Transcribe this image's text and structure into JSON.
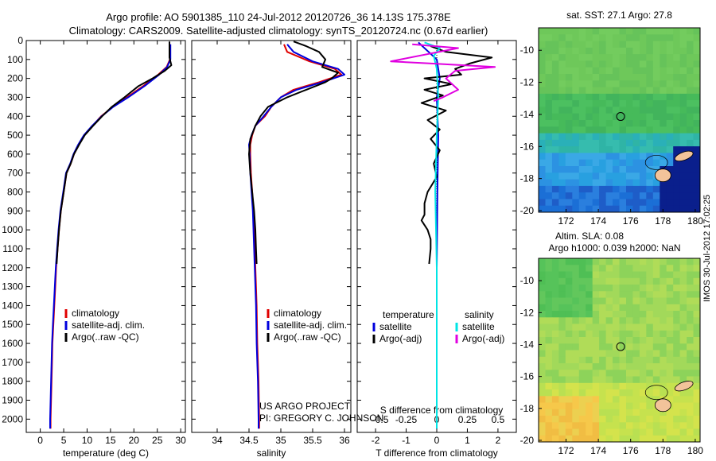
{
  "header": {
    "title_line1": "Argo profile: AO 5901385_110 24-Jul-2012 20120726_36 14.13S 175.378E",
    "title_line2": "Climatology: CARS2009. Satellite-adjusted climatology: synTS_20120724.nc (0.67d earlier)"
  },
  "footer_stamp": "IMOS 30-Jul-2012 17:02:25",
  "chart_data": [
    {
      "type": "line",
      "name": "temperature-panel",
      "xlabel": "temperature (deg C)",
      "xlim": [
        -3,
        31
      ],
      "ylim": [
        2070,
        0
      ],
      "xticks": [
        0,
        5,
        10,
        15,
        20,
        25,
        30
      ],
      "yticks": [
        0,
        100,
        200,
        300,
        400,
        500,
        600,
        700,
        800,
        900,
        1000,
        1100,
        1200,
        1300,
        1400,
        1500,
        1600,
        1700,
        1800,
        1900,
        2000
      ],
      "legend": [
        "climatology",
        "satellite-adj. clim.",
        "Argo(..raw -QC)"
      ],
      "series": [
        {
          "name": "climatology",
          "color": "#e00000",
          "points": [
            [
              27.7,
              20
            ],
            [
              27.7,
              100
            ],
            [
              27.0,
              140
            ],
            [
              25.2,
              180
            ],
            [
              22.0,
              240
            ],
            [
              18.5,
              300
            ],
            [
              15.5,
              350
            ],
            [
              13.0,
              400
            ],
            [
              11.2,
              450
            ],
            [
              9.4,
              500
            ],
            [
              8.2,
              550
            ],
            [
              7.2,
              600
            ],
            [
              6.5,
              650
            ],
            [
              5.6,
              700
            ],
            [
              5.0,
              800
            ],
            [
              4.4,
              900
            ],
            [
              4.0,
              1000
            ],
            [
              3.7,
              1100
            ],
            [
              3.4,
              1200
            ],
            [
              3.2,
              1300
            ],
            [
              3.0,
              1400
            ],
            [
              2.8,
              1500
            ],
            [
              2.6,
              1600
            ],
            [
              2.5,
              1700
            ],
            [
              2.4,
              1800
            ],
            [
              2.3,
              1900
            ],
            [
              2.2,
              2000
            ],
            [
              2.2,
              2050
            ]
          ]
        },
        {
          "name": "satellite-adj. clim.",
          "color": "#0000dd",
          "points": [
            [
              27.8,
              20
            ],
            [
              27.8,
              100
            ],
            [
              27.1,
              140
            ],
            [
              25.4,
              180
            ],
            [
              22.3,
              240
            ],
            [
              18.8,
              300
            ],
            [
              15.6,
              350
            ],
            [
              13.1,
              400
            ],
            [
              11.1,
              450
            ],
            [
              9.3,
              500
            ],
            [
              8.1,
              550
            ],
            [
              7.1,
              600
            ],
            [
              6.4,
              650
            ],
            [
              5.5,
              700
            ],
            [
              4.9,
              800
            ],
            [
              4.3,
              900
            ],
            [
              3.9,
              1000
            ],
            [
              3.6,
              1100
            ],
            [
              3.3,
              1200
            ],
            [
              3.1,
              1300
            ],
            [
              2.9,
              1400
            ],
            [
              2.7,
              1500
            ],
            [
              2.5,
              1600
            ],
            [
              2.4,
              1700
            ],
            [
              2.3,
              1800
            ],
            [
              2.2,
              1900
            ],
            [
              2.1,
              2000
            ],
            [
              2.1,
              2050
            ]
          ]
        },
        {
          "name": "Argo(..raw -QC)",
          "color": "#000000",
          "points": [
            [
              27.6,
              5
            ],
            [
              27.6,
              90
            ],
            [
              28.0,
              130
            ],
            [
              26.6,
              160
            ],
            [
              24.0,
              200
            ],
            [
              21.0,
              240
            ],
            [
              18.0,
              300
            ],
            [
              15.3,
              350
            ],
            [
              13.2,
              400
            ],
            [
              11.3,
              450
            ],
            [
              9.5,
              500
            ],
            [
              8.3,
              550
            ],
            [
              7.2,
              600
            ],
            [
              6.5,
              650
            ],
            [
              5.6,
              700
            ],
            [
              5.0,
              800
            ],
            [
              4.4,
              900
            ],
            [
              4.0,
              1000
            ],
            [
              3.7,
              1100
            ],
            [
              3.5,
              1180
            ]
          ]
        }
      ]
    },
    {
      "type": "line",
      "name": "salinity-panel",
      "xlabel": "salinity",
      "xlim": [
        33.6,
        36.1
      ],
      "ylim": [
        2070,
        0
      ],
      "xticks": [
        34,
        34.5,
        35,
        35.5,
        36
      ],
      "legend": [
        "climatology",
        "satellite-adj. clim.",
        "Argo(..raw -QC)"
      ],
      "annotation": [
        "US ARGO PROJECT",
        "PI: GREGORY C. JOHNSON"
      ],
      "series": [
        {
          "name": "climatology",
          "color": "#e00000",
          "points": [
            [
              35.05,
              20
            ],
            [
              35.1,
              60
            ],
            [
              35.45,
              110
            ],
            [
              35.85,
              150
            ],
            [
              35.95,
              180
            ],
            [
              35.6,
              220
            ],
            [
              35.2,
              260
            ],
            [
              35.0,
              300
            ],
            [
              34.85,
              350
            ],
            [
              34.75,
              400
            ],
            [
              34.6,
              450
            ],
            [
              34.55,
              500
            ],
            [
              34.52,
              550
            ],
            [
              34.52,
              600
            ],
            [
              34.53,
              700
            ],
            [
              34.55,
              800
            ],
            [
              34.57,
              900
            ],
            [
              34.58,
              1000
            ],
            [
              34.6,
              1200
            ],
            [
              34.62,
              1400
            ],
            [
              34.63,
              1600
            ],
            [
              34.65,
              1800
            ],
            [
              34.66,
              2000
            ],
            [
              34.66,
              2050
            ]
          ]
        },
        {
          "name": "satellite-adj. clim.",
          "color": "#0000dd",
          "points": [
            [
              35.1,
              20
            ],
            [
              35.2,
              60
            ],
            [
              35.5,
              110
            ],
            [
              35.9,
              150
            ],
            [
              36.0,
              180
            ],
            [
              35.65,
              220
            ],
            [
              35.25,
              260
            ],
            [
              35.0,
              300
            ],
            [
              34.85,
              350
            ],
            [
              34.73,
              400
            ],
            [
              34.6,
              450
            ],
            [
              34.54,
              500
            ],
            [
              34.5,
              550
            ],
            [
              34.51,
              600
            ],
            [
              34.52,
              700
            ],
            [
              34.54,
              800
            ],
            [
              34.56,
              900
            ],
            [
              34.57,
              1000
            ],
            [
              34.59,
              1200
            ],
            [
              34.61,
              1400
            ],
            [
              34.62,
              1600
            ],
            [
              34.64,
              1800
            ],
            [
              34.65,
              2000
            ],
            [
              34.65,
              2050
            ]
          ]
        },
        {
          "name": "Argo(..raw -QC)",
          "color": "#000000",
          "points": [
            [
              35.2,
              5
            ],
            [
              35.4,
              30
            ],
            [
              35.6,
              60
            ],
            [
              35.7,
              100
            ],
            [
              35.65,
              140
            ],
            [
              35.9,
              170
            ],
            [
              35.8,
              200
            ],
            [
              35.7,
              220
            ],
            [
              35.4,
              260
            ],
            [
              35.1,
              300
            ],
            [
              34.8,
              350
            ],
            [
              34.68,
              400
            ],
            [
              34.6,
              450
            ],
            [
              34.52,
              520
            ],
            [
              34.5,
              600
            ],
            [
              34.52,
              700
            ],
            [
              34.55,
              800
            ],
            [
              34.58,
              900
            ],
            [
              34.6,
              1000
            ],
            [
              34.61,
              1100
            ],
            [
              34.62,
              1180
            ]
          ]
        }
      ]
    },
    {
      "type": "line",
      "name": "difference-panel",
      "xlabel": "T difference from climatology",
      "xlabel_top": "S difference from climatology",
      "xlim": [
        -2.6,
        2.6
      ],
      "ylim": [
        2070,
        0
      ],
      "xticks": [
        -2,
        -1,
        0,
        1,
        2
      ],
      "xticklabels_top": [
        "-0.5",
        "-0.25",
        "0",
        "0.25",
        "0.5"
      ],
      "legend_groups": [
        {
          "heading": "temperature",
          "items": [
            "satellite",
            "Argo(-adj)"
          ]
        },
        {
          "heading": "salinity",
          "items": [
            "satellite",
            "Argo(-adj)"
          ]
        }
      ],
      "series": [
        {
          "name": "temperature satellite",
          "color": "#0000dd",
          "points": [
            [
              -0.6,
              10
            ],
            [
              0.0,
              100
            ],
            [
              0.1,
              200
            ],
            [
              0.0,
              300
            ],
            [
              0.05,
              500
            ],
            [
              0.02,
              800
            ],
            [
              0.0,
              1200
            ],
            [
              0.0,
              2050
            ]
          ]
        },
        {
          "name": "temperature Argo(-adj)",
          "color": "#000000",
          "points": [
            [
              -0.2,
              30
            ],
            [
              0.3,
              60
            ],
            [
              1.8,
              90
            ],
            [
              1.1,
              120
            ],
            [
              0.6,
              150
            ],
            [
              0.8,
              180
            ],
            [
              -0.4,
              200
            ],
            [
              0.5,
              230
            ],
            [
              -0.4,
              260
            ],
            [
              0.2,
              290
            ],
            [
              -0.5,
              330
            ],
            [
              0.3,
              370
            ],
            [
              -0.3,
              420
            ],
            [
              0.1,
              470
            ],
            [
              -0.2,
              520
            ],
            [
              0.1,
              580
            ],
            [
              -0.1,
              650
            ],
            [
              0.0,
              720
            ],
            [
              -0.3,
              800
            ],
            [
              -0.4,
              860
            ],
            [
              -0.4,
              920
            ],
            [
              -0.5,
              950
            ],
            [
              -0.3,
              1000
            ],
            [
              -0.2,
              1050
            ],
            [
              -0.2,
              1100
            ],
            [
              -0.25,
              1180
            ]
          ]
        },
        {
          "name": "salinity satellite",
          "color": "#00e5e5",
          "points": [
            [
              -0.4,
              10
            ],
            [
              0.1,
              40
            ],
            [
              -0.1,
              80
            ],
            [
              0.0,
              150
            ],
            [
              0.05,
              300
            ],
            [
              0.0,
              500
            ],
            [
              -0.05,
              800
            ],
            [
              0.0,
              1200
            ],
            [
              0.0,
              2050
            ]
          ]
        },
        {
          "name": "salinity Argo(-adj)",
          "color": "#e000e0",
          "points": [
            [
              -0.8,
              20
            ],
            [
              0.7,
              40
            ],
            [
              -1.5,
              110
            ],
            [
              -0.3,
              120
            ],
            [
              1.9,
              140
            ],
            [
              0.6,
              160
            ],
            [
              0.3,
              200
            ],
            [
              0.7,
              260
            ],
            [
              0.2,
              300
            ],
            [
              -0.1,
              320
            ]
          ]
        }
      ]
    },
    {
      "type": "heatmap",
      "name": "sst-map",
      "title": "sat. SST: 27.1  Argo: 27.8",
      "xlim": [
        170.3,
        180.3
      ],
      "ylim": [
        -20.1,
        -8.6
      ],
      "xticks": [
        172,
        174,
        176,
        178,
        180
      ],
      "yticks": [
        -10,
        -12,
        -14,
        -16,
        -18,
        -20
      ],
      "argo_location": [
        175.378,
        -14.13
      ]
    },
    {
      "type": "heatmap",
      "name": "sla-map",
      "title_lines": [
        "Altim. SLA: 0.08",
        "Argo h1000: 0.039 h2000: NaN"
      ],
      "xlim": [
        170.3,
        180.3
      ],
      "ylim": [
        -20.1,
        -8.6
      ],
      "xticks": [
        172,
        174,
        176,
        178,
        180
      ],
      "yticks": [
        -10,
        -12,
        -14,
        -16,
        -18,
        -20
      ],
      "argo_location": [
        175.378,
        -14.13
      ]
    }
  ]
}
